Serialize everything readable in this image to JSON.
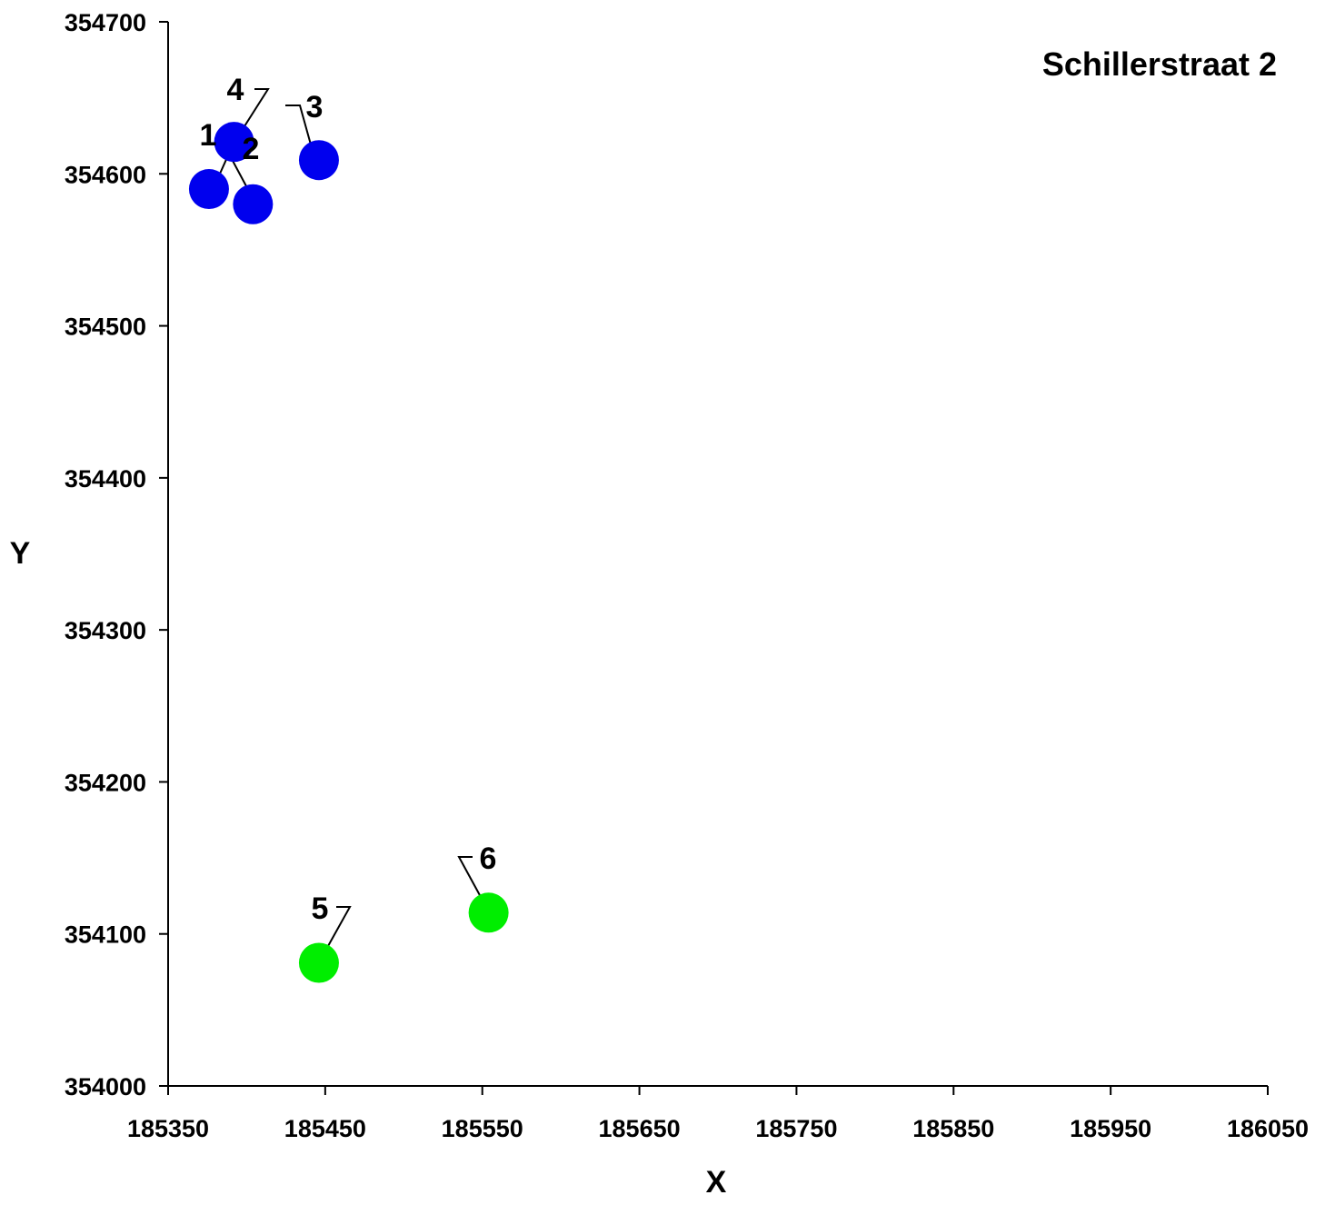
{
  "chart_data": {
    "type": "scatter",
    "title": "Schillerstraat 2",
    "xlabel": "X",
    "ylabel": "Y",
    "xlim": [
      185350,
      186050
    ],
    "ylim": [
      354000,
      354700
    ],
    "x_ticks": [
      "185350",
      "185450",
      "185550",
      "185650",
      "185750",
      "185850",
      "185950",
      "186050"
    ],
    "y_ticks": [
      "354000",
      "354100",
      "354200",
      "354300",
      "354400",
      "354500",
      "354600",
      "354700"
    ],
    "grid": false,
    "legend": "none",
    "series": [
      {
        "color": "#0000ee",
        "points": [
          {
            "label": "1",
            "x": 185376,
            "y": 354590
          },
          {
            "label": "2",
            "x": 185404,
            "y": 354580
          },
          {
            "label": "3",
            "x": 185446,
            "y": 354609
          },
          {
            "label": "4",
            "x": 185392,
            "y": 354621
          }
        ]
      },
      {
        "color": "#00ee00",
        "points": [
          {
            "label": "5",
            "x": 185446,
            "y": 354081
          },
          {
            "label": "6",
            "x": 185554,
            "y": 354114
          }
        ]
      }
    ]
  }
}
